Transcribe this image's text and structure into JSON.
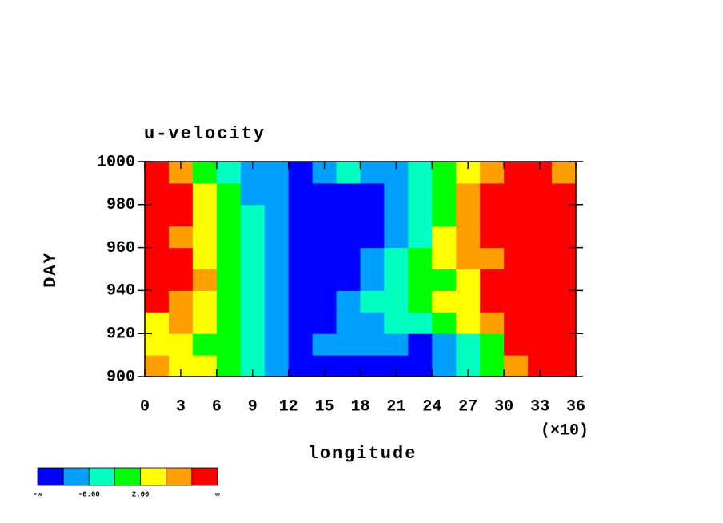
{
  "chart_data": {
    "type": "hovmoller",
    "title": "u-velocity",
    "xlabel": "longitude",
    "ylabel": "DAY",
    "x_multiplier": "(×10)",
    "xlim": [
      0,
      360
    ],
    "ylim": [
      900,
      1000
    ],
    "xticks": [
      {
        "value": 0,
        "label": "0"
      },
      {
        "value": 30,
        "label": "3"
      },
      {
        "value": 60,
        "label": "6"
      },
      {
        "value": 90,
        "label": "9"
      },
      {
        "value": 120,
        "label": "12"
      },
      {
        "value": 150,
        "label": "15"
      },
      {
        "value": 180,
        "label": "18"
      },
      {
        "value": 210,
        "label": "21"
      },
      {
        "value": 240,
        "label": "24"
      },
      {
        "value": 270,
        "label": "27"
      },
      {
        "value": 300,
        "label": "30"
      },
      {
        "value": 330,
        "label": "33"
      },
      {
        "value": 360,
        "label": "36"
      }
    ],
    "yticks": [
      900,
      920,
      940,
      960,
      980,
      1000
    ],
    "lon_edges": [
      0,
      20,
      40,
      60,
      80,
      100,
      120,
      140,
      160,
      180,
      200,
      220,
      240,
      260,
      280,
      300,
      320,
      340,
      360
    ],
    "day_edges": [
      900,
      910,
      920,
      930,
      940,
      950,
      960,
      970,
      980,
      990,
      1000
    ],
    "z": [
      [
        6,
        4,
        2,
        0,
        -4,
        -8,
        -12,
        -12,
        -12,
        -12,
        -12,
        -12,
        -8,
        -4,
        0,
        8,
        12,
        12
      ],
      [
        2,
        4,
        0,
        -2,
        -6,
        -8,
        -12,
        -10,
        -8,
        -8,
        -10,
        -12,
        -8,
        -6,
        -2,
        12,
        12,
        12
      ],
      [
        4,
        6,
        2,
        -2,
        -4,
        -10,
        -12,
        -12,
        -10,
        -8,
        -6,
        -4,
        -2,
        2,
        8,
        10,
        12,
        12
      ],
      [
        12,
        8,
        2,
        -2,
        -6,
        -10,
        -12,
        -12,
        -10,
        -6,
        -4,
        -2,
        2,
        4,
        10,
        12,
        12,
        12
      ],
      [
        12,
        12,
        6,
        -2,
        -6,
        -10,
        -12,
        -12,
        -12,
        -8,
        -4,
        -2,
        0,
        4,
        12,
        12,
        12,
        12
      ],
      [
        10,
        12,
        4,
        0,
        -6,
        -8,
        -12,
        -12,
        -12,
        -10,
        -6,
        -2,
        2,
        6,
        8,
        12,
        12,
        12
      ],
      [
        12,
        8,
        4,
        0,
        -4,
        -8,
        -12,
        -12,
        -12,
        -12,
        -8,
        -4,
        2,
        8,
        12,
        12,
        12,
        12
      ],
      [
        12,
        10,
        4,
        -2,
        -6,
        -10,
        -12,
        -12,
        -12,
        -12,
        -10,
        -4,
        0,
        6,
        12,
        12,
        10,
        12
      ],
      [
        12,
        12,
        4,
        -2,
        -8,
        -10,
        -12,
        -12,
        -12,
        -12,
        -8,
        -4,
        0,
        6,
        10,
        12,
        12,
        12
      ],
      [
        12,
        6,
        0,
        -4,
        -8,
        -10,
        -12,
        -8,
        -6,
        -8,
        -8,
        -6,
        -2,
        2,
        6,
        10,
        12,
        8
      ]
    ],
    "levels": [
      -10,
      -6,
      -2,
      2,
      6,
      10
    ],
    "colors": [
      "#0000ff",
      "#00a0ff",
      "#00ffc0",
      "#00ff00",
      "#ffff00",
      "#ffa000",
      "#ff0000"
    ],
    "colorbar_min_label": "-∞",
    "colorbar_max_label": "∞",
    "colorbar_ticks": [
      {
        "value": -6,
        "label": "-6.00"
      },
      {
        "value": 2,
        "label": "2.00"
      }
    ]
  }
}
